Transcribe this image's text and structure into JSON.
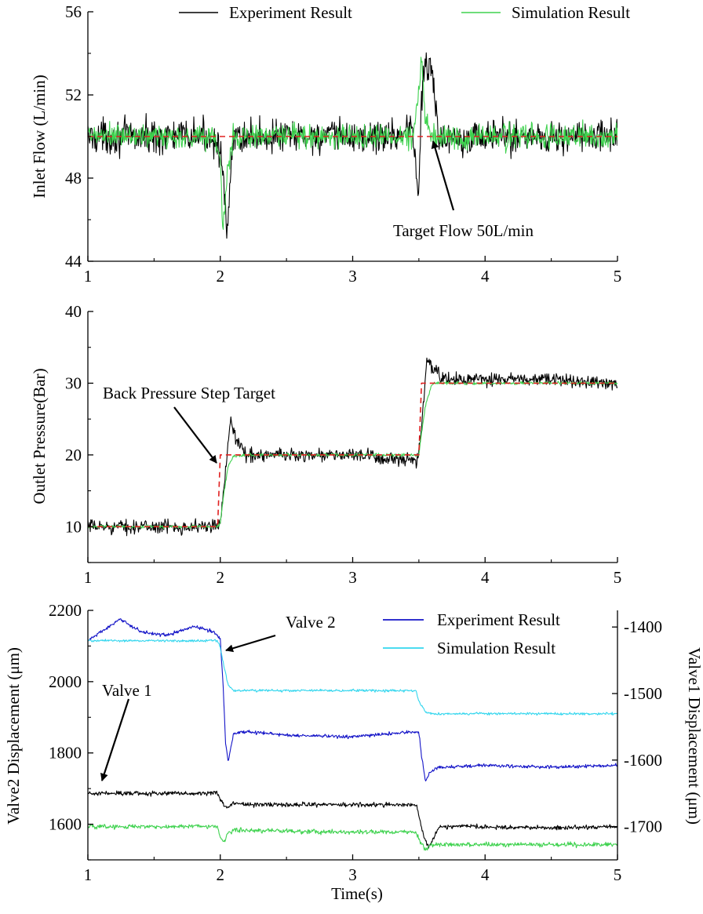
{
  "chart_data": [
    {
      "type": "line",
      "ylabel": "Inlet Flow (L/min)",
      "xlim": [
        1,
        5
      ],
      "ylim": [
        44,
        56
      ],
      "xticks": [
        1,
        2,
        3,
        4,
        5
      ],
      "yticks": [
        44,
        48,
        52,
        56
      ],
      "legend": "top",
      "grid": false,
      "series": [
        {
          "name": "Experiment Result",
          "color": "#000000",
          "x": [
            1.0,
            1.25,
            1.5,
            1.75,
            1.95,
            2.0,
            2.03,
            2.05,
            2.1,
            2.3,
            2.6,
            3.0,
            3.3,
            3.45,
            3.5,
            3.52,
            3.55,
            3.6,
            3.65,
            4.0,
            4.5,
            5.0
          ],
          "y": [
            50,
            50,
            50,
            50,
            50,
            49.5,
            47,
            45.2,
            50,
            50,
            50,
            50,
            50,
            50.5,
            47,
            52,
            53.5,
            53,
            50,
            50,
            50,
            50
          ],
          "noise": 1.2
        },
        {
          "name": "Simulation Result",
          "color": "#3fd24f",
          "x": [
            1.0,
            1.25,
            1.5,
            1.75,
            1.95,
            2.0,
            2.02,
            2.05,
            2.1,
            2.5,
            3.0,
            3.45,
            3.5,
            3.52,
            3.55,
            3.6,
            4.0,
            4.5,
            5.0
          ],
          "y": [
            50,
            50,
            50,
            50,
            50,
            49,
            45.5,
            48,
            50,
            50,
            50,
            50,
            52,
            54,
            51,
            50,
            50,
            50,
            50
          ],
          "noise": 0.9
        },
        {
          "name": "",
          "color": "#e02020",
          "dashed": true,
          "x": [
            1,
            5
          ],
          "y": [
            50,
            50
          ]
        }
      ],
      "annotations": [
        {
          "text": "Target Flow 50L/min",
          "x": 3.55,
          "y": 50
        }
      ]
    },
    {
      "type": "line",
      "ylabel": "Outlet Pressure(Bar)",
      "xlim": [
        1,
        5
      ],
      "ylim": [
        5,
        40
      ],
      "xticks": [
        1,
        2,
        3,
        4,
        5
      ],
      "yticks": [
        10,
        20,
        30,
        40
      ],
      "grid": false,
      "series": [
        {
          "name": "Experiment Result",
          "color": "#000000",
          "x": [
            1.0,
            1.5,
            1.98,
            2.0,
            2.03,
            2.06,
            2.08,
            2.12,
            2.2,
            2.5,
            3.0,
            3.48,
            3.5,
            3.53,
            3.56,
            3.6,
            3.7,
            4.0,
            4.5,
            5.0
          ],
          "y": [
            10,
            10,
            10,
            10.5,
            16,
            22,
            25.5,
            22,
            20,
            20,
            20,
            19,
            20,
            26,
            33.5,
            32,
            30.5,
            30.5,
            30.5,
            30
          ],
          "noise": 1.4
        },
        {
          "name": "Simulation Result",
          "color": "#3fd24f",
          "x": [
            1.0,
            1.98,
            2.0,
            2.03,
            2.06,
            2.1,
            2.2,
            3.0,
            3.5,
            3.52,
            3.55,
            3.6,
            4.0,
            5.0
          ],
          "y": [
            10,
            10,
            10.5,
            15,
            18.5,
            19.8,
            20,
            20,
            20,
            23,
            27,
            30,
            30,
            30
          ],
          "noise": 0.3
        },
        {
          "name": "",
          "color": "#e02020",
          "dashed": true,
          "x": [
            1,
            1.98,
            2.0,
            3.5,
            3.52,
            5
          ],
          "y": [
            10,
            10,
            20,
            20,
            30,
            30
          ]
        }
      ],
      "annotations": [
        {
          "text": "Back Pressure Step Target",
          "x": 1.98,
          "y": 20
        }
      ]
    },
    {
      "type": "line",
      "xlabel": "Time(s)",
      "ylabel": "Valve2 Displacement (μm)",
      "y2label": "Valve1 Displacement (μm)",
      "xlim": [
        1,
        5
      ],
      "ylim": [
        1500,
        2200
      ],
      "y2lim": [
        -1750,
        -1375
      ],
      "xticks": [
        1,
        2,
        3,
        4,
        5
      ],
      "yticks": [
        1600,
        1800,
        2000,
        2200
      ],
      "y2ticks": [
        -1700,
        -1600,
        -1500,
        -1400
      ],
      "legend": "top-right",
      "grid": false,
      "series": [
        {
          "name": "Experiment Result",
          "axis": "left",
          "color": "#1515c8",
          "x": [
            1.0,
            1.1,
            1.25,
            1.4,
            1.6,
            1.8,
            1.95,
            2.0,
            2.02,
            2.04,
            2.06,
            2.1,
            2.2,
            2.5,
            3.0,
            3.3,
            3.5,
            3.52,
            3.55,
            3.58,
            3.65,
            4.0,
            4.5,
            5.0
          ],
          "y": [
            2115,
            2140,
            2175,
            2140,
            2130,
            2155,
            2140,
            2120,
            2000,
            1830,
            1775,
            1855,
            1860,
            1850,
            1845,
            1855,
            1860,
            1790,
            1720,
            1745,
            1760,
            1765,
            1760,
            1765
          ],
          "noise": 7
        },
        {
          "name": "Simulation Result",
          "axis": "left",
          "color": "#33d6ee",
          "x": [
            1.0,
            1.5,
            1.98,
            2.0,
            2.03,
            2.06,
            2.1,
            2.3,
            3.0,
            3.48,
            3.5,
            3.55,
            3.6,
            4.0,
            5.0
          ],
          "y": [
            2115,
            2115,
            2115,
            2095,
            2040,
            1990,
            1975,
            1975,
            1975,
            1975,
            1945,
            1915,
            1910,
            1910,
            1910
          ],
          "noise": 5
        },
        {
          "name": "",
          "axis": "right",
          "color": "#000000",
          "x": [
            1.0,
            1.5,
            1.98,
            2.0,
            2.05,
            2.1,
            2.2,
            3.0,
            3.48,
            3.5,
            3.55,
            3.58,
            3.65,
            4.0,
            4.5,
            5.0
          ],
          "y": [
            -1650,
            -1650,
            -1650,
            -1660,
            -1672,
            -1665,
            -1667,
            -1667,
            -1667,
            -1685,
            -1722,
            -1730,
            -1700,
            -1700,
            -1702,
            -1700
          ],
          "noise": 5
        },
        {
          "name": "",
          "axis": "right",
          "color": "#3fd24f",
          "x": [
            1.0,
            1.5,
            1.98,
            2.0,
            2.03,
            2.06,
            2.1,
            2.5,
            3.0,
            3.48,
            3.5,
            3.55,
            3.6,
            4.0,
            5.0
          ],
          "y": [
            -1700,
            -1700,
            -1700,
            -1715,
            -1722,
            -1710,
            -1705,
            -1707,
            -1708,
            -1708,
            -1720,
            -1735,
            -1727,
            -1727,
            -1727
          ],
          "noise": 5
        }
      ],
      "annotations": [
        {
          "text": "Valve 2",
          "x": 2.0,
          "y": 2115
        },
        {
          "text": "Valve 1",
          "x": 1.1,
          "y": 1720
        }
      ]
    }
  ]
}
